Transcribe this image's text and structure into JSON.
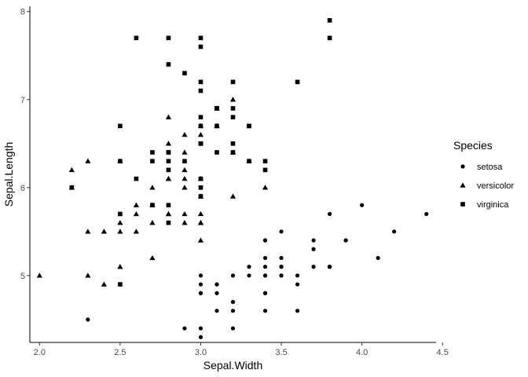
{
  "chart_data": {
    "type": "scatter",
    "xlabel": "Sepal.Width",
    "ylabel": "Sepal.Length",
    "xlim": [
      1.94,
      4.46
    ],
    "ylim": [
      4.24,
      8.06
    ],
    "xticks": [
      2.0,
      2.5,
      3.0,
      3.5,
      4.0,
      4.5
    ],
    "xtick_labels": [
      "2.0",
      "2.5",
      "3.0",
      "3.5",
      "4.0",
      "4.5"
    ],
    "yticks": [
      5,
      6,
      7,
      8
    ],
    "ytick_labels": [
      "5",
      "6",
      "7",
      "8"
    ],
    "grid": false,
    "legend": {
      "title": "Species",
      "placement": "right"
    },
    "series": [
      {
        "name": "setosa",
        "marker": "circle",
        "points": [
          [
            3.5,
            5.1
          ],
          [
            3.0,
            4.9
          ],
          [
            3.2,
            4.7
          ],
          [
            3.1,
            4.6
          ],
          [
            3.6,
            5.0
          ],
          [
            3.9,
            5.4
          ],
          [
            3.4,
            4.6
          ],
          [
            3.4,
            5.0
          ],
          [
            2.9,
            4.4
          ],
          [
            3.1,
            4.9
          ],
          [
            3.7,
            5.4
          ],
          [
            3.4,
            4.8
          ],
          [
            3.0,
            4.8
          ],
          [
            3.0,
            4.3
          ],
          [
            4.0,
            5.8
          ],
          [
            4.4,
            5.7
          ],
          [
            3.9,
            5.4
          ],
          [
            3.5,
            5.1
          ],
          [
            3.8,
            5.7
          ],
          [
            3.8,
            5.1
          ],
          [
            3.4,
            5.4
          ],
          [
            3.7,
            5.1
          ],
          [
            3.6,
            4.6
          ],
          [
            3.3,
            5.1
          ],
          [
            3.4,
            4.8
          ],
          [
            3.0,
            5.0
          ],
          [
            3.4,
            5.0
          ],
          [
            3.5,
            5.2
          ],
          [
            3.4,
            5.2
          ],
          [
            3.2,
            4.7
          ],
          [
            3.1,
            4.8
          ],
          [
            3.4,
            5.4
          ],
          [
            4.1,
            5.2
          ],
          [
            4.2,
            5.5
          ],
          [
            3.1,
            4.9
          ],
          [
            3.2,
            5.0
          ],
          [
            3.5,
            5.5
          ],
          [
            3.6,
            4.9
          ],
          [
            3.0,
            4.4
          ],
          [
            3.4,
            5.1
          ],
          [
            3.5,
            5.0
          ],
          [
            2.3,
            4.5
          ],
          [
            3.2,
            4.4
          ],
          [
            3.5,
            5.0
          ],
          [
            3.8,
            5.1
          ],
          [
            3.0,
            4.8
          ],
          [
            3.8,
            5.1
          ],
          [
            3.2,
            4.6
          ],
          [
            3.7,
            5.3
          ],
          [
            3.3,
            5.0
          ]
        ]
      },
      {
        "name": "versicolor",
        "marker": "triangle",
        "points": [
          [
            3.2,
            7.0
          ],
          [
            3.2,
            6.4
          ],
          [
            3.1,
            6.9
          ],
          [
            2.3,
            5.5
          ],
          [
            2.8,
            6.5
          ],
          [
            2.8,
            5.7
          ],
          [
            3.3,
            6.3
          ],
          [
            2.4,
            4.9
          ],
          [
            2.9,
            6.6
          ],
          [
            2.7,
            5.2
          ],
          [
            2.0,
            5.0
          ],
          [
            3.0,
            5.9
          ],
          [
            2.2,
            6.0
          ],
          [
            2.9,
            6.1
          ],
          [
            2.9,
            5.6
          ],
          [
            3.1,
            6.7
          ],
          [
            3.0,
            5.6
          ],
          [
            2.7,
            5.8
          ],
          [
            2.2,
            6.2
          ],
          [
            2.5,
            5.6
          ],
          [
            3.2,
            5.9
          ],
          [
            2.8,
            6.1
          ],
          [
            2.5,
            6.3
          ],
          [
            2.8,
            6.1
          ],
          [
            2.9,
            6.4
          ],
          [
            3.0,
            6.6
          ],
          [
            2.8,
            6.8
          ],
          [
            3.0,
            6.7
          ],
          [
            2.9,
            6.0
          ],
          [
            2.6,
            5.7
          ],
          [
            2.4,
            5.5
          ],
          [
            2.4,
            5.5
          ],
          [
            2.7,
            5.8
          ],
          [
            2.7,
            6.0
          ],
          [
            3.0,
            5.4
          ],
          [
            3.4,
            6.0
          ],
          [
            3.1,
            6.7
          ],
          [
            2.3,
            6.3
          ],
          [
            3.0,
            5.6
          ],
          [
            2.5,
            5.5
          ],
          [
            2.6,
            5.5
          ],
          [
            3.0,
            6.1
          ],
          [
            2.6,
            5.8
          ],
          [
            2.3,
            5.0
          ],
          [
            2.7,
            5.6
          ],
          [
            3.0,
            5.7
          ],
          [
            2.9,
            5.7
          ],
          [
            2.9,
            6.2
          ],
          [
            2.5,
            5.1
          ],
          [
            2.8,
            5.7
          ]
        ]
      },
      {
        "name": "virginica",
        "marker": "square",
        "points": [
          [
            3.3,
            6.3
          ],
          [
            2.7,
            5.8
          ],
          [
            3.0,
            7.1
          ],
          [
            2.9,
            6.3
          ],
          [
            3.0,
            6.5
          ],
          [
            3.0,
            7.6
          ],
          [
            2.5,
            4.9
          ],
          [
            2.9,
            7.3
          ],
          [
            2.5,
            6.7
          ],
          [
            3.6,
            7.2
          ],
          [
            3.2,
            6.5
          ],
          [
            2.7,
            6.4
          ],
          [
            3.0,
            6.8
          ],
          [
            2.5,
            5.7
          ],
          [
            2.8,
            5.8
          ],
          [
            3.2,
            6.4
          ],
          [
            3.0,
            6.5
          ],
          [
            3.8,
            7.7
          ],
          [
            2.6,
            7.7
          ],
          [
            2.2,
            6.0
          ],
          [
            3.2,
            6.9
          ],
          [
            2.8,
            5.6
          ],
          [
            2.8,
            7.7
          ],
          [
            2.7,
            6.3
          ],
          [
            3.3,
            6.7
          ],
          [
            3.2,
            7.2
          ],
          [
            2.8,
            6.2
          ],
          [
            3.0,
            6.1
          ],
          [
            2.8,
            6.4
          ],
          [
            3.0,
            7.2
          ],
          [
            2.8,
            7.4
          ],
          [
            3.8,
            7.9
          ],
          [
            2.8,
            6.4
          ],
          [
            2.8,
            6.3
          ],
          [
            2.6,
            6.1
          ],
          [
            3.0,
            7.7
          ],
          [
            3.4,
            6.3
          ],
          [
            3.1,
            6.4
          ],
          [
            3.0,
            6.0
          ],
          [
            3.1,
            6.9
          ],
          [
            3.1,
            6.7
          ],
          [
            3.1,
            6.9
          ],
          [
            2.7,
            5.8
          ],
          [
            3.2,
            6.8
          ],
          [
            3.3,
            6.7
          ],
          [
            3.0,
            6.7
          ],
          [
            2.5,
            6.3
          ],
          [
            3.0,
            6.5
          ],
          [
            3.4,
            6.2
          ],
          [
            3.0,
            5.9
          ]
        ]
      }
    ]
  }
}
